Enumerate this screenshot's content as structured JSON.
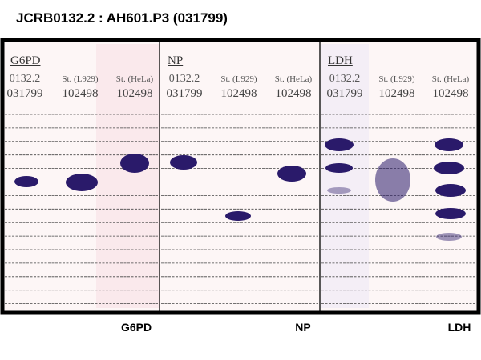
{
  "title": "JCRB0132.2 : AH601.P3 (031799)",
  "panels": [
    {
      "title": "G6PD",
      "lanes": [
        {
          "line1": "0132.2",
          "line2": "031799"
        },
        {
          "line1": "St. (L929)",
          "line2": "102498"
        },
        {
          "line1": "St. (HeLa)",
          "line2": "102498"
        }
      ]
    },
    {
      "title": "NP",
      "lanes": [
        {
          "line1": "0132.2",
          "line2": "031799"
        },
        {
          "line1": "St. (L929)",
          "line2": "102498"
        },
        {
          "line1": "St. (HeLa)",
          "line2": "102498"
        }
      ]
    },
    {
      "title": "LDH",
      "lanes": [
        {
          "line1": "0132.2",
          "line2": "031799"
        },
        {
          "line1": "St. (L929)",
          "line2": "102498"
        },
        {
          "line1": "St. (HeLa)",
          "line2": "102498"
        }
      ]
    }
  ],
  "bottom_labels": [
    "G6PD",
    "NP",
    "LDH"
  ]
}
